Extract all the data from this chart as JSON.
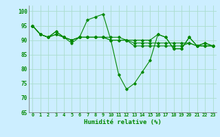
{
  "title": "",
  "xlabel": "Humidité relative (%)",
  "ylabel": "",
  "background_color": "#cceeff",
  "grid_color": "#aaddcc",
  "line_color": "#008800",
  "xlim": [
    -0.5,
    23.5
  ],
  "ylim": [
    65,
    102
  ],
  "yticks": [
    65,
    70,
    75,
    80,
    85,
    90,
    95,
    100
  ],
  "xticks": [
    0,
    1,
    2,
    3,
    4,
    5,
    6,
    7,
    8,
    9,
    10,
    11,
    12,
    13,
    14,
    15,
    16,
    17,
    18,
    19,
    20,
    21,
    22,
    23
  ],
  "series": [
    [
      95,
      92,
      91,
      93,
      91,
      89,
      91,
      97,
      98,
      99,
      90,
      78,
      73,
      75,
      79,
      83,
      92,
      91,
      87,
      87,
      91,
      88,
      89,
      88
    ],
    [
      95,
      92,
      91,
      92,
      91,
      90,
      91,
      91,
      91,
      91,
      90,
      90,
      90,
      88,
      88,
      88,
      88,
      88,
      88,
      88,
      89,
      88,
      88,
      88
    ],
    [
      95,
      92,
      91,
      92,
      91,
      90,
      91,
      91,
      91,
      91,
      90,
      90,
      90,
      89,
      89,
      89,
      89,
      89,
      89,
      89,
      89,
      88,
      88,
      88
    ],
    [
      95,
      92,
      91,
      93,
      91,
      90,
      91,
      91,
      91,
      91,
      91,
      91,
      90,
      90,
      90,
      90,
      92,
      91,
      87,
      87,
      91,
      88,
      89,
      88
    ]
  ]
}
